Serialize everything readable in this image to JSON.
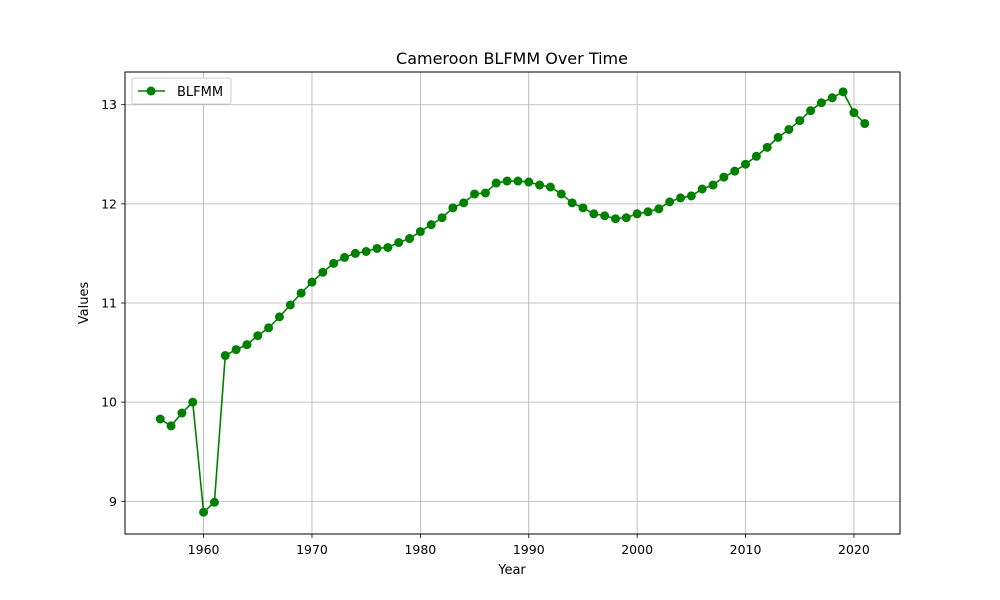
{
  "chart_data": {
    "type": "line",
    "title": "Cameroon BLFMM Over Time",
    "xlabel": "Year",
    "ylabel": "Values",
    "xlim": [
      1952.75,
      2024.25
    ],
    "ylim": [
      8.67,
      13.33
    ],
    "xticks": [
      1960,
      1970,
      1980,
      1990,
      2000,
      2010,
      2020
    ],
    "yticks": [
      9,
      10,
      11,
      12,
      13
    ],
    "grid": true,
    "legend_position": "top-left",
    "series": [
      {
        "name": "BLFMM",
        "color": "#008000",
        "marker": "circle",
        "x": [
          1956,
          1957,
          1958,
          1959,
          1960,
          1961,
          1962,
          1963,
          1964,
          1965,
          1966,
          1967,
          1968,
          1969,
          1970,
          1971,
          1972,
          1973,
          1974,
          1975,
          1976,
          1977,
          1978,
          1979,
          1980,
          1981,
          1982,
          1983,
          1984,
          1985,
          1986,
          1987,
          1988,
          1989,
          1990,
          1991,
          1992,
          1993,
          1994,
          1995,
          1996,
          1997,
          1998,
          1999,
          2000,
          2001,
          2002,
          2003,
          2004,
          2005,
          2006,
          2007,
          2008,
          2009,
          2010,
          2011,
          2012,
          2013,
          2014,
          2015,
          2016,
          2017,
          2018,
          2019,
          2020,
          2021
        ],
        "y": [
          9.83,
          9.76,
          9.89,
          10.0,
          8.89,
          8.99,
          10.47,
          10.53,
          10.58,
          10.67,
          10.75,
          10.86,
          10.98,
          11.1,
          11.21,
          11.31,
          11.4,
          11.46,
          11.5,
          11.52,
          11.55,
          11.56,
          11.61,
          11.65,
          11.72,
          11.79,
          11.86,
          11.96,
          12.01,
          12.1,
          12.11,
          12.21,
          12.23,
          12.23,
          12.22,
          12.19,
          12.17,
          12.1,
          12.01,
          11.96,
          11.9,
          11.88,
          11.85,
          11.86,
          11.9,
          11.92,
          11.95,
          12.02,
          12.06,
          12.08,
          12.15,
          12.19,
          12.27,
          12.33,
          12.4,
          12.48,
          12.57,
          12.67,
          12.75,
          12.84,
          12.94,
          13.02,
          13.07,
          13.13,
          12.92,
          12.81
        ]
      }
    ]
  }
}
